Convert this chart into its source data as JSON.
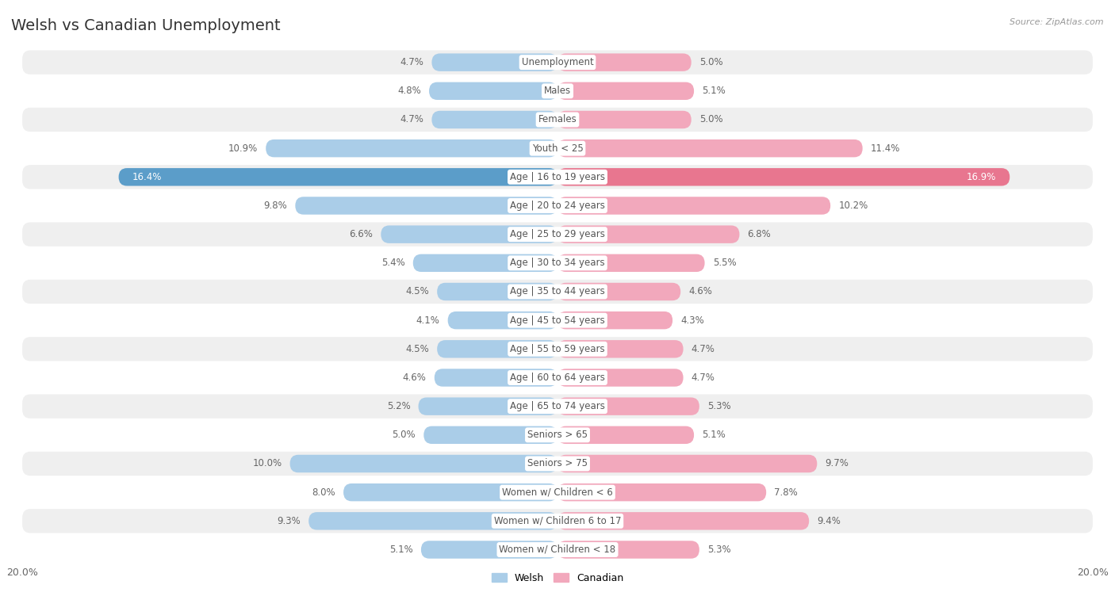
{
  "title": "Welsh vs Canadian Unemployment",
  "source": "Source: ZipAtlas.com",
  "categories": [
    "Unemployment",
    "Males",
    "Females",
    "Youth < 25",
    "Age | 16 to 19 years",
    "Age | 20 to 24 years",
    "Age | 25 to 29 years",
    "Age | 30 to 34 years",
    "Age | 35 to 44 years",
    "Age | 45 to 54 years",
    "Age | 55 to 59 years",
    "Age | 60 to 64 years",
    "Age | 65 to 74 years",
    "Seniors > 65",
    "Seniors > 75",
    "Women w/ Children < 6",
    "Women w/ Children 6 to 17",
    "Women w/ Children < 18"
  ],
  "welsh": [
    4.7,
    4.8,
    4.7,
    10.9,
    16.4,
    9.8,
    6.6,
    5.4,
    4.5,
    4.1,
    4.5,
    4.6,
    5.2,
    5.0,
    10.0,
    8.0,
    9.3,
    5.1
  ],
  "canadian": [
    5.0,
    5.1,
    5.0,
    11.4,
    16.9,
    10.2,
    6.8,
    5.5,
    4.6,
    4.3,
    4.7,
    4.7,
    5.3,
    5.1,
    9.7,
    7.8,
    9.4,
    5.3
  ],
  "welsh_color": "#aacde8",
  "canadian_color": "#f2a8bc",
  "welsh_highlight_color": "#5b9dc9",
  "canadian_highlight_color": "#e8768f",
  "max_value": 20.0,
  "bg_color": "#ffffff",
  "row_alt_color": "#efefef",
  "row_main_color": "#ffffff",
  "value_color": "#666666",
  "value_highlight_color": "#ffffff",
  "center_label_color": "#555555",
  "legend_welsh": "Welsh",
  "legend_canadian": "Canadian",
  "title_color": "#333333",
  "source_color": "#999999",
  "axis_label_color": "#666666"
}
